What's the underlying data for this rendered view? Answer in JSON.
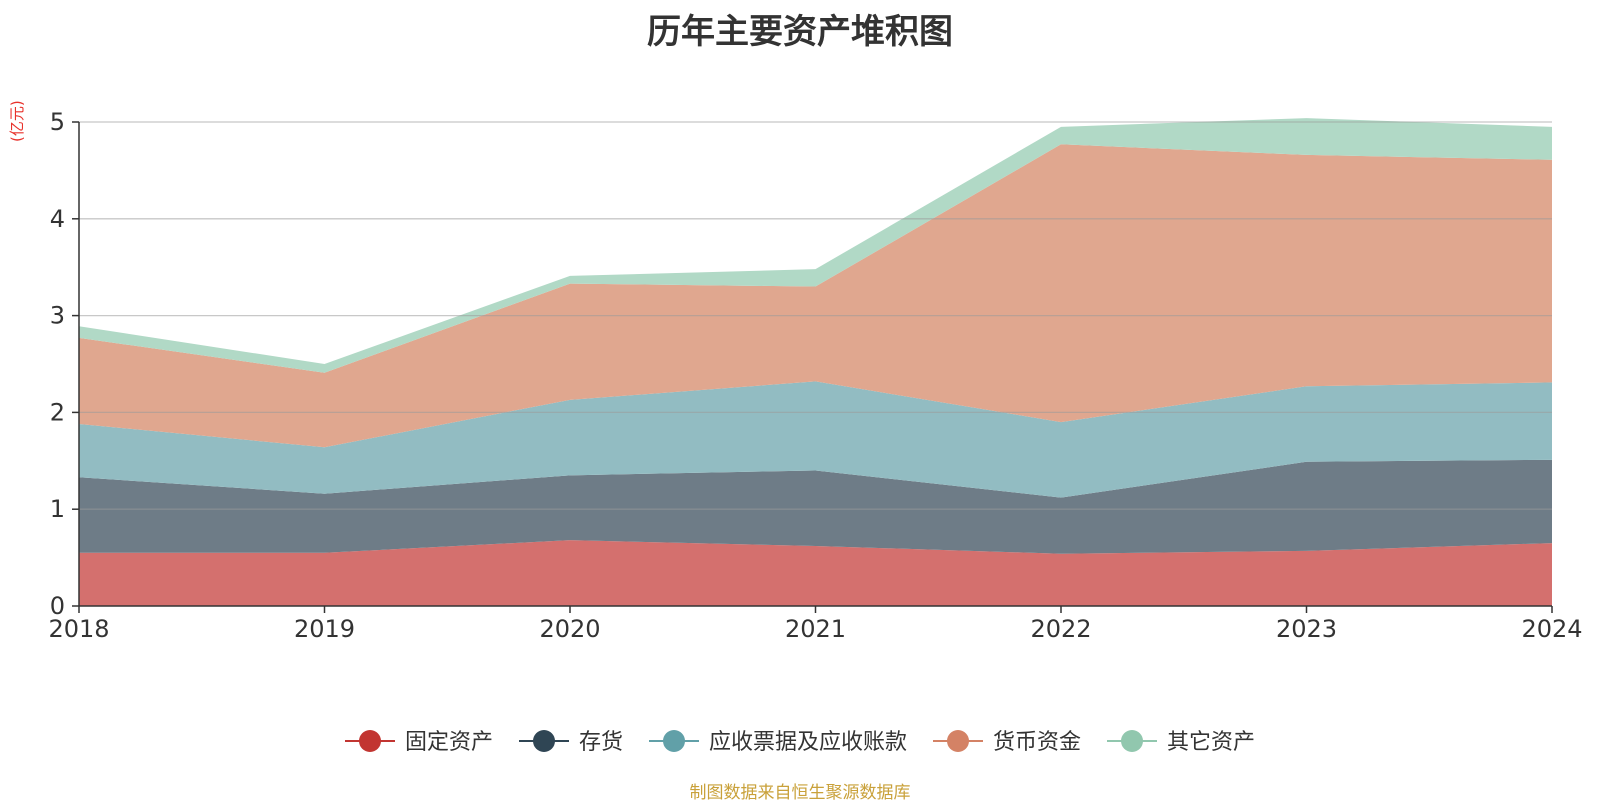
{
  "chart_data": {
    "type": "area",
    "stacked": true,
    "title": "历年主要资产堆积图",
    "unit_label": "(亿元)",
    "source_note": "制图数据来自恒生聚源数据库",
    "x": [
      "2018",
      "2019",
      "2020",
      "2021",
      "2022",
      "2023",
      "2024"
    ],
    "ylim": [
      0,
      5
    ],
    "yticks": [
      0,
      1,
      2,
      3,
      4,
      5
    ],
    "grid": true,
    "legend_position": "bottom",
    "series": [
      {
        "name": "固定资产",
        "color": "#c23531",
        "fill": "#d4706e",
        "values": [
          0.55,
          0.55,
          0.68,
          0.62,
          0.54,
          0.57,
          0.65
        ]
      },
      {
        "name": "存货",
        "color": "#2f4554",
        "fill": "#6e7c87",
        "values": [
          0.78,
          0.61,
          0.67,
          0.78,
          0.58,
          0.92,
          0.86
        ]
      },
      {
        "name": "应收票据及应收账款",
        "color": "#61a0a8",
        "fill": "#92bcc2",
        "values": [
          0.55,
          0.48,
          0.78,
          0.92,
          0.78,
          0.78,
          0.8
        ]
      },
      {
        "name": "货币资金",
        "color": "#d48265",
        "fill": "#e0a78f",
        "values": [
          0.89,
          0.77,
          1.2,
          0.98,
          2.87,
          2.39,
          2.3
        ]
      },
      {
        "name": "其它资产",
        "color": "#91c7ae",
        "fill": "#b1d9c6",
        "values": [
          0.12,
          0.09,
          0.08,
          0.18,
          0.18,
          0.38,
          0.34
        ]
      }
    ]
  }
}
